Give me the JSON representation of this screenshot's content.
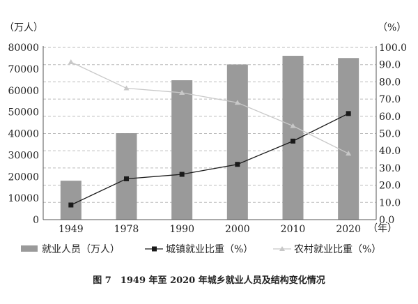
{
  "chart_data": {
    "type": "bar+line",
    "title": "图 7　1949 年至 2020 年城乡就业人员及结构变化情况",
    "left_unit": "（万人）",
    "right_unit": "（%）",
    "x_unit": "（年）",
    "categories": [
      "1949",
      "1978",
      "1990",
      "2000",
      "2010",
      "2020"
    ],
    "ylim_left": [
      0,
      80000
    ],
    "yticks_left": [
      "0",
      "10000",
      "20000",
      "30000",
      "40000",
      "50000",
      "60000",
      "70000",
      "80000"
    ],
    "ylim_right": [
      0,
      100
    ],
    "yticks_right": [
      "0.0",
      "10.0",
      "20.0",
      "30.0",
      "40.0",
      "50.0",
      "60.0",
      "70.0",
      "80.0",
      "90.0",
      "100.0"
    ],
    "grid": "horizontal dashed",
    "legend_position": "bottom",
    "series": [
      {
        "name": "就业人员（万人）",
        "kind": "bar",
        "axis": "left",
        "color": "#9a9a9a",
        "values": [
          18082,
          40152,
          64749,
          72085,
          76105,
          75064
        ]
      },
      {
        "name": "城镇就业比重（%）",
        "kind": "line",
        "marker": "square",
        "axis": "right",
        "color": "#1a1a1a",
        "values": [
          8.5,
          23.7,
          26.3,
          32.1,
          45.6,
          61.6
        ]
      },
      {
        "name": "农村就业比重（%）",
        "kind": "line",
        "marker": "triangle",
        "axis": "right",
        "color": "#c8c8c8",
        "values": [
          91.5,
          76.3,
          73.7,
          67.9,
          54.4,
          38.4
        ]
      }
    ]
  }
}
